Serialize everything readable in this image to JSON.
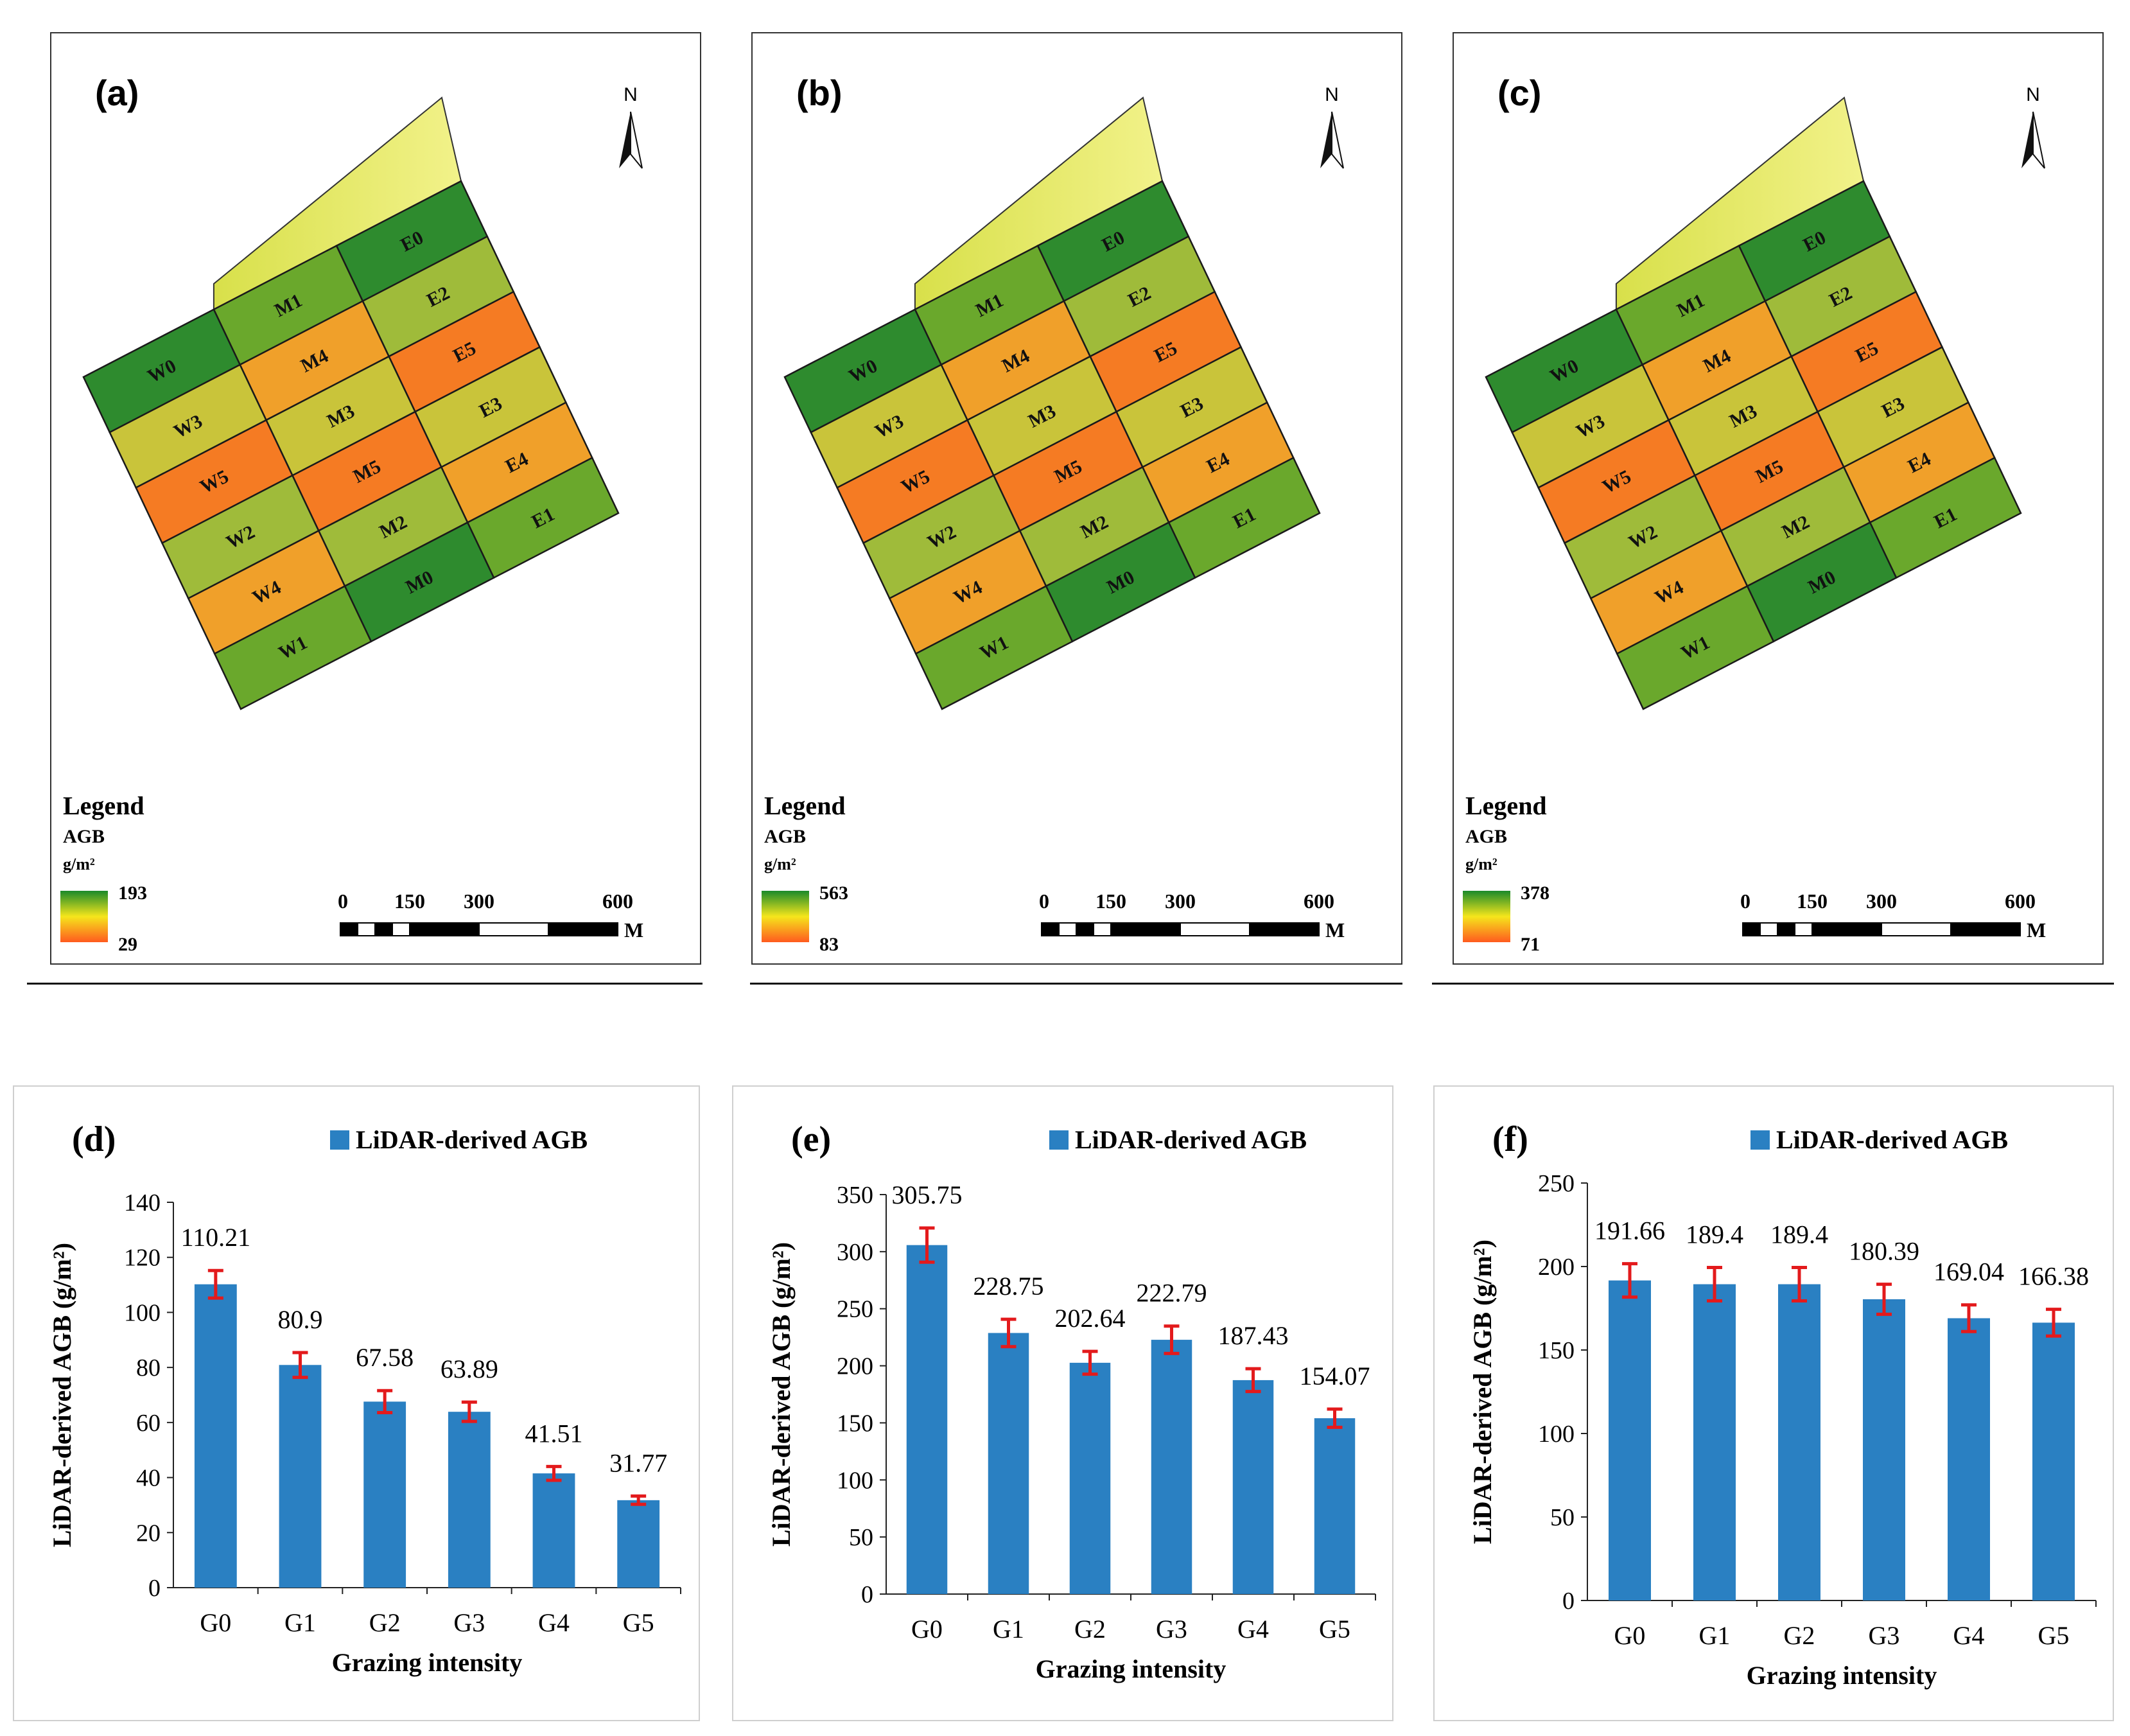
{
  "maps": [
    {
      "label": "(a)",
      "legend_title": "Legend",
      "legend_var": "AGB",
      "legend_unit": "g/m²",
      "legend_max": "193",
      "legend_min": "29"
    },
    {
      "label": "(b)",
      "legend_title": "Legend",
      "legend_var": "AGB",
      "legend_unit": "g/m²",
      "legend_max": "563",
      "legend_min": "83"
    },
    {
      "label": "(c)",
      "legend_title": "Legend",
      "legend_var": "AGB",
      "legend_unit": "g/m²",
      "legend_max": "378",
      "legend_min": "71"
    }
  ],
  "map_common": {
    "north": "N",
    "scale_labels": [
      "0",
      "150",
      "300",
      "600"
    ],
    "scale_unit": "M",
    "plots": [
      {
        "name": "E0",
        "level": 0
      },
      {
        "name": "M1",
        "level": 1
      },
      {
        "name": "W0",
        "level": 0
      },
      {
        "name": "E2",
        "level": 2
      },
      {
        "name": "M4",
        "level": 4
      },
      {
        "name": "W3",
        "level": 3
      },
      {
        "name": "E5",
        "level": 5
      },
      {
        "name": "M3",
        "level": 3
      },
      {
        "name": "W5",
        "level": 5
      },
      {
        "name": "E3",
        "level": 3
      },
      {
        "name": "M5",
        "level": 5
      },
      {
        "name": "W2",
        "level": 2
      },
      {
        "name": "E4",
        "level": 4
      },
      {
        "name": "M2",
        "level": 2
      },
      {
        "name": "W4",
        "level": 4
      },
      {
        "name": "E1",
        "level": 1
      },
      {
        "name": "M0",
        "level": 0
      },
      {
        "name": "W1",
        "level": 1
      }
    ]
  },
  "colors": {
    "bar": "#2a80c2",
    "error": "#e31a1c",
    "legend_high": "#1a8a2a",
    "legend_mid": "#f5e61c",
    "legend_low": "#ff5a1e"
  },
  "chart_data": [
    {
      "type": "bar",
      "label": "(d)",
      "legend": "LiDAR-derived AGB",
      "categories": [
        "G0",
        "G1",
        "G2",
        "G3",
        "G4",
        "G5"
      ],
      "values": [
        110.21,
        80.9,
        67.58,
        63.89,
        41.51,
        31.77
      ],
      "value_labels": [
        "110.21",
        "80.9",
        "67.58",
        "63.89",
        "41.51",
        "31.77"
      ],
      "errors": [
        5,
        4.5,
        4,
        3.5,
        2.5,
        1.5
      ],
      "ylim": [
        0,
        140
      ],
      "yticks": [
        0,
        20,
        40,
        60,
        80,
        100,
        120,
        140
      ],
      "ylabel": "LiDAR-derived AGB (g/m²)",
      "xlabel": "Grazing intensity"
    },
    {
      "type": "bar",
      "label": "(e)",
      "legend": "LiDAR-derived AGB",
      "categories": [
        "G0",
        "G1",
        "G2",
        "G3",
        "G4",
        "G5"
      ],
      "values": [
        305.75,
        228.75,
        202.64,
        222.79,
        187.43,
        154.07
      ],
      "value_labels": [
        "305.75",
        "228.75",
        "202.64",
        "222.79",
        "187.43",
        "154.07"
      ],
      "errors": [
        15,
        12,
        10,
        12,
        10,
        8
      ],
      "ylim": [
        0,
        350
      ],
      "yticks": [
        0,
        50,
        100,
        150,
        200,
        250,
        300,
        350
      ],
      "ylabel": "LiDAR-derived AGB (g/m²)",
      "xlabel": "Grazing intensity"
    },
    {
      "type": "bar",
      "label": "(f)",
      "legend": "LiDAR-derived AGB",
      "categories": [
        "G0",
        "G1",
        "G2",
        "G3",
        "G4",
        "G5"
      ],
      "values": [
        191.66,
        189.4,
        189.4,
        180.39,
        169.04,
        166.38
      ],
      "value_labels": [
        "191.66",
        "189.4",
        "189.4",
        "180.39",
        "169.04",
        "166.38"
      ],
      "errors": [
        10,
        10,
        10,
        9,
        8,
        8
      ],
      "ylim": [
        0,
        250
      ],
      "yticks": [
        0,
        50,
        100,
        150,
        200,
        250
      ],
      "ylabel": "LiDAR-derived AGB (g/m²)",
      "xlabel": "Grazing intensity"
    }
  ]
}
